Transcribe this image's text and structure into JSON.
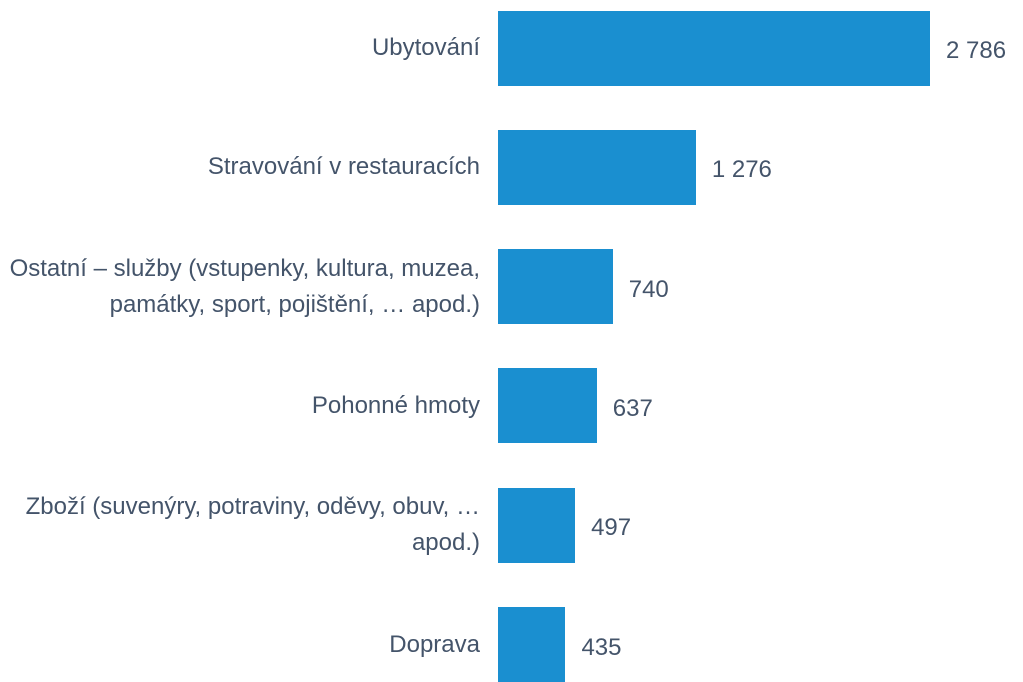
{
  "chart_data": {
    "type": "bar",
    "orientation": "horizontal",
    "color": "#1a8fd0",
    "categories": [
      "Ubytování",
      "Stravování v restauracích",
      "Ostatní – služby (vstupenky, kultura, muzea, památky, sport, pojištění, … apod.)",
      "Pohonné hmoty",
      "Zboží (suvenýry, potraviny, oděvy, obuv, … apod.)",
      "Doprava"
    ],
    "values": [
      2786,
      1276,
      740,
      637,
      497,
      435
    ],
    "value_labels": [
      "2 786",
      "1 276",
      "740",
      "637",
      "497",
      "435"
    ]
  }
}
